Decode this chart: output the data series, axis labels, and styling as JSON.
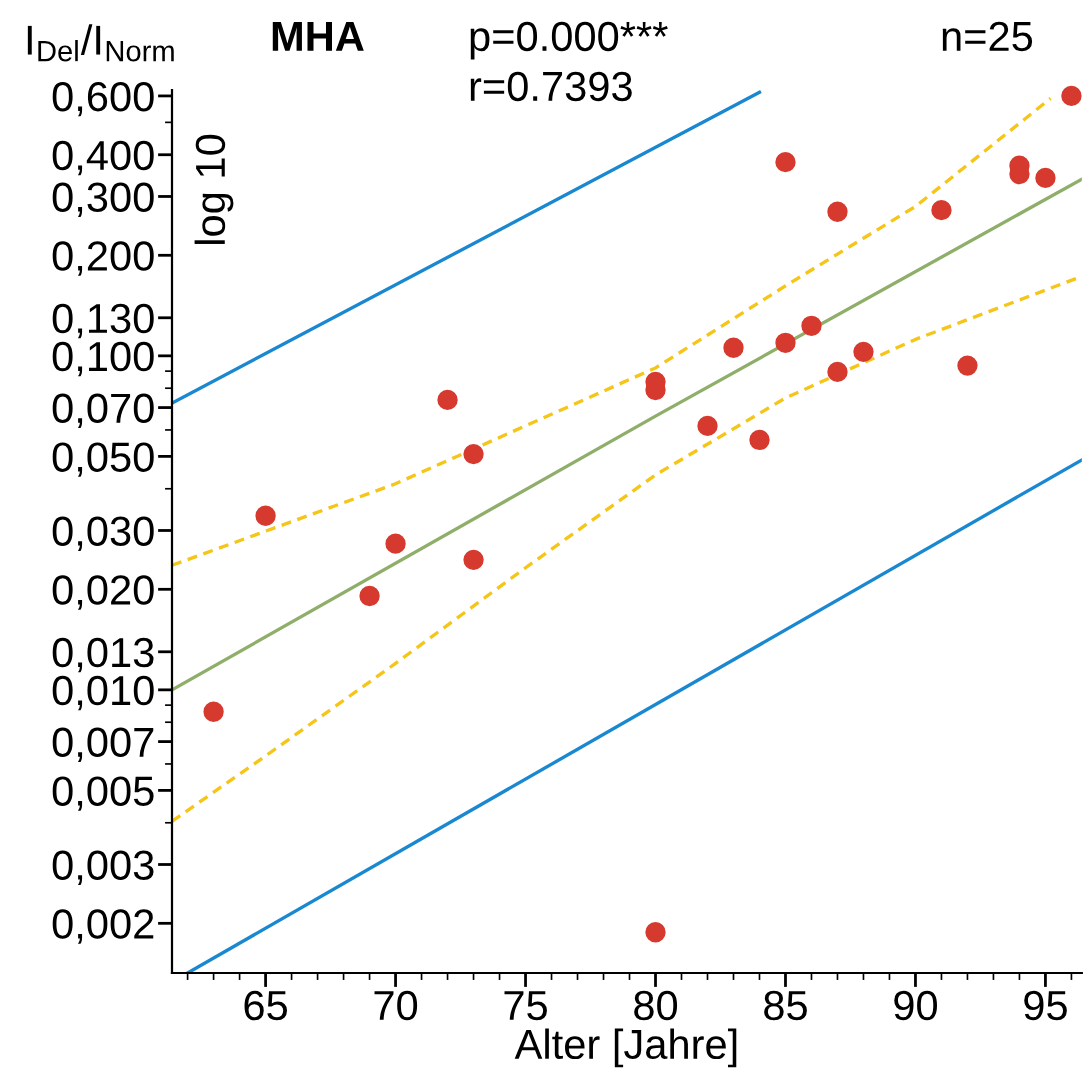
{
  "chart_data": {
    "type": "scatter",
    "title": "MHA",
    "xlabel": "Alter [Jahre]",
    "ylabel": "I$_{Del}$/I$_{Norm}$",
    "annotations": [
      "p=0.000***",
      "r=0.7393",
      "n=25",
      "log 10"
    ],
    "log": "y",
    "grid": false,
    "marker": "circle",
    "xlim": [
      61.4,
      96.4
    ],
    "xticks": [
      65,
      70,
      75,
      80,
      85,
      90,
      95
    ],
    "ylim": [
      0.00142,
      0.625
    ],
    "yticks": [
      {
        "value": 0.002,
        "label": "0,002"
      },
      {
        "value": 0.003,
        "label": "0,003"
      },
      {
        "value": 0.005,
        "label": "0,005"
      },
      {
        "value": 0.007,
        "label": "0,007"
      },
      {
        "value": 0.01,
        "label": "0,010"
      },
      {
        "value": 0.013,
        "label": "0,013"
      },
      {
        "value": 0.02,
        "label": "0,020"
      },
      {
        "value": 0.03,
        "label": "0,030"
      },
      {
        "value": 0.05,
        "label": "0,050"
      },
      {
        "value": 0.07,
        "label": "0,070"
      },
      {
        "value": 0.1,
        "label": "0,100"
      },
      {
        "value": 0.13,
        "label": "0,130"
      },
      {
        "value": 0.2,
        "label": "0,200"
      },
      {
        "value": 0.3,
        "label": "0,300"
      },
      {
        "value": 0.4,
        "label": "0,400"
      },
      {
        "value": 0.6,
        "label": "0,600"
      }
    ],
    "series": [
      {
        "type": "line",
        "line_style": "solid",
        "marker": "none",
        "color": "#1a88d0",
        "x": [
          61.4,
          84.0
        ],
        "values": [
          0.0722,
          0.615
        ]
      },
      {
        "type": "line",
        "line_style": "solid",
        "marker": "none",
        "color": "#1a88d0",
        "x": [
          62.0,
          96.4
        ],
        "values": [
          0.00142,
          0.0488
        ]
      },
      {
        "type": "line",
        "line_style": "dashed",
        "marker": "none",
        "color": "#f5c518",
        "x": [
          61.4,
          70,
          80,
          85,
          90,
          95.2
        ],
        "values": [
          0.0236,
          0.0414,
          0.092,
          0.162,
          0.28,
          0.59
        ]
      },
      {
        "type": "line",
        "line_style": "dashed",
        "marker": "none",
        "color": "#f5c518",
        "x": [
          61.4,
          65,
          70,
          75,
          80,
          85,
          90,
          96.4
        ],
        "values": [
          0.00404,
          0.00634,
          0.012,
          0.0232,
          0.044,
          0.0748,
          0.112,
          0.173
        ]
      },
      {
        "type": "line",
        "line_style": "solid",
        "marker": "none",
        "color": "#8fae6a",
        "x": [
          61.4,
          80,
          96.4
        ],
        "values": [
          0.01,
          0.066,
          0.338
        ]
      },
      {
        "color": "#d63a2f",
        "x": [
          63,
          65,
          69,
          70,
          72,
          73,
          73,
          80,
          80,
          80,
          82,
          83,
          84,
          85,
          85,
          86,
          87,
          87,
          88,
          91,
          92,
          94,
          94,
          95,
          96
        ],
        "values": [
          0.0086,
          0.0332,
          0.0191,
          0.0274,
          0.0738,
          0.0508,
          0.0245,
          0.0836,
          0.079,
          0.00188,
          0.0617,
          0.1057,
          0.056,
          0.38,
          0.1094,
          0.123,
          0.0895,
          0.27,
          0.1028,
          0.273,
          0.0935,
          0.371,
          0.35,
          0.341,
          0.6
        ]
      }
    ]
  }
}
